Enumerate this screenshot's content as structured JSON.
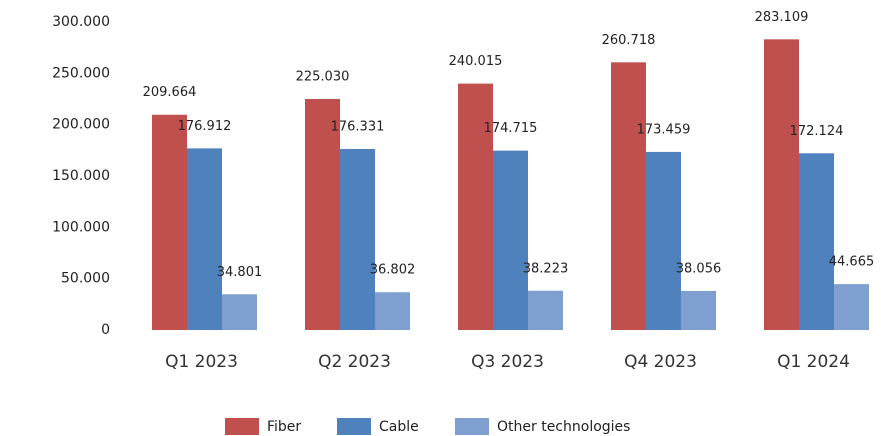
{
  "chart_data": {
    "type": "bar",
    "categories": [
      "Q1 2023",
      "Q2 2023",
      "Q3 2023",
      "Q4 2023",
      "Q1 2024"
    ],
    "series": [
      {
        "name": "Fiber",
        "color": "#c0504d",
        "values": [
          209664,
          225030,
          240015,
          260718,
          283109
        ],
        "value_labels": [
          "209.664",
          "225.030",
          "240.015",
          "260.718",
          "283.109"
        ]
      },
      {
        "name": "Cable",
        "color": "#4f81bd",
        "values": [
          176912,
          176331,
          174715,
          173459,
          172124
        ],
        "value_labels": [
          "176.912",
          "176.331",
          "174.715",
          "173.459",
          "172.124"
        ]
      },
      {
        "name": "Other technologies",
        "color": "#7f9fd0",
        "values": [
          34801,
          36802,
          38223,
          38056,
          44665
        ],
        "value_labels": [
          "34.801",
          "36.802",
          "38.223",
          "38.056",
          "44.665"
        ]
      }
    ],
    "ylim": [
      0,
      300000
    ],
    "yticks": [
      0,
      {
        "value": 50000,
        "label": "50.000"
      },
      {
        "value": 100000,
        "label": "100.000"
      },
      {
        "value": 150000,
        "label": "150.000"
      },
      {
        "value": 200000,
        "label": "200.000"
      },
      {
        "value": 250000,
        "label": "250.000"
      },
      {
        "value": 300000,
        "label": "300.000"
      }
    ],
    "grid": false,
    "legend": "bottom"
  }
}
